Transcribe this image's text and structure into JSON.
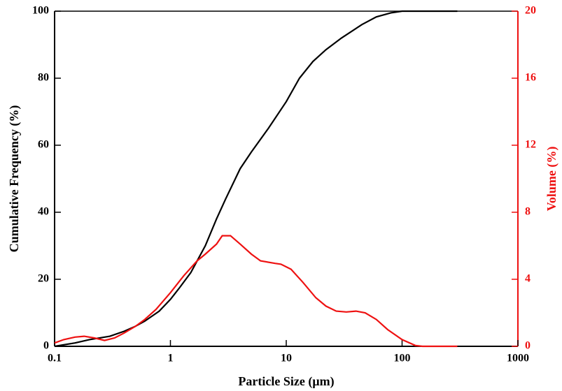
{
  "chart_data": {
    "type": "line",
    "xlabel": "Particle Size (μm)",
    "ylabel": "Cumulative Frequency (%)",
    "y2label": "Volume (%)",
    "xscale": "log",
    "xlim": [
      0.1,
      1000
    ],
    "xticks": [
      0.1,
      1,
      10,
      100,
      1000
    ],
    "ylim": [
      0,
      100
    ],
    "yticks": [
      0,
      20,
      40,
      60,
      80,
      100
    ],
    "y2lim": [
      0,
      20
    ],
    "y2ticks": [
      0,
      4,
      8,
      12,
      16,
      20
    ],
    "y2color": "#ee1111",
    "series": [
      {
        "color": "#000000",
        "x": [
          0.1,
          0.15,
          0.2,
          0.3,
          0.4,
          0.5,
          0.6,
          0.8,
          1,
          1.2,
          1.5,
          2,
          2.5,
          3,
          4,
          5,
          7,
          10,
          13,
          17,
          22,
          30,
          45,
          60,
          80,
          100,
          150,
          300
        ],
        "values": [
          0,
          1,
          2,
          3,
          4.5,
          6,
          7.5,
          10.5,
          14,
          17.5,
          22,
          30,
          38,
          44,
          53,
          58,
          65,
          73,
          80,
          85,
          88.5,
          92,
          96,
          98.3,
          99.5,
          100,
          100,
          100
        ]
      },
      {
        "color": "#ee1111",
        "axis": "y2",
        "x": [
          0.1,
          0.12,
          0.15,
          0.18,
          0.22,
          0.27,
          0.33,
          0.4,
          0.5,
          0.6,
          0.75,
          1,
          1.3,
          1.7,
          2,
          2.5,
          2.8,
          3.3,
          4,
          5,
          6,
          8,
          9,
          11,
          14,
          18,
          22,
          27,
          33,
          40,
          48,
          60,
          75,
          100,
          130,
          150,
          200,
          300
        ],
        "values": [
          0.2,
          0.4,
          0.55,
          0.6,
          0.5,
          0.35,
          0.5,
          0.8,
          1.2,
          1.6,
          2.2,
          3.2,
          4.2,
          5.1,
          5.5,
          6.1,
          6.6,
          6.6,
          6.1,
          5.5,
          5.1,
          4.95,
          4.9,
          4.6,
          3.8,
          2.9,
          2.4,
          2.1,
          2.05,
          2.1,
          2.0,
          1.6,
          1.0,
          0.4,
          0.05,
          0,
          0,
          0
        ]
      }
    ]
  }
}
